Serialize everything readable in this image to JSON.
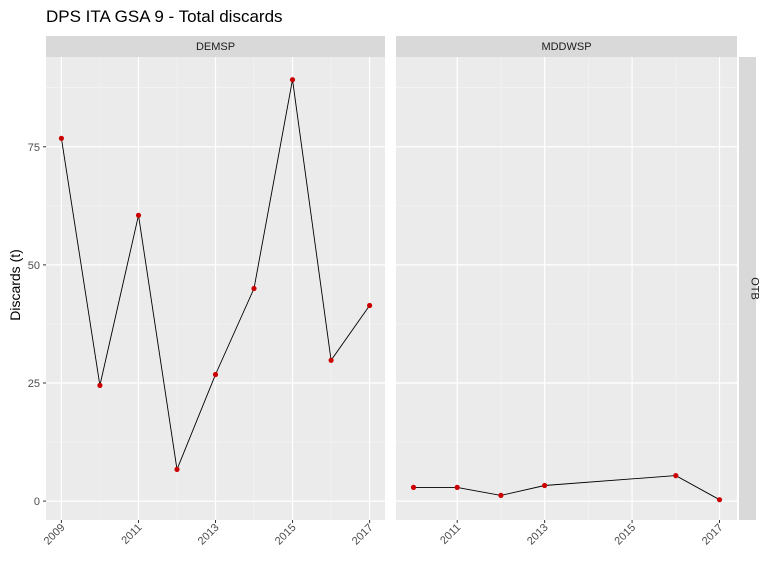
{
  "chart_data": {
    "type": "line",
    "title": "DPS ITA GSA 9 - Total discards",
    "xlabel": "",
    "ylabel": "Discards (t)",
    "row_strip": "OTB",
    "ylim": [
      -4,
      94
    ],
    "y_ticks": [
      0,
      25,
      50,
      75
    ],
    "grid": true,
    "colors": {
      "panel_bg": "#ebebeb",
      "grid_major": "#ffffff",
      "line": "#000000",
      "point": "#cc0000"
    },
    "facets": [
      {
        "name": "DEMSP",
        "xlim": [
          2008.6,
          2017.4
        ],
        "x_ticks": [
          2009,
          2011,
          2013,
          2015,
          2017
        ],
        "x": [
          2009,
          2010,
          2011,
          2012,
          2013,
          2014,
          2015,
          2016,
          2017
        ],
        "y": [
          76.8,
          24.5,
          60.5,
          6.7,
          26.8,
          45.0,
          89.2,
          29.8,
          41.4
        ]
      },
      {
        "name": "MDDWSP",
        "xlim": [
          2009.6,
          2017.4
        ],
        "x_ticks": [
          2011,
          2013,
          2015,
          2017
        ],
        "x": [
          2010,
          2011,
          2012,
          2013,
          2016,
          2017
        ],
        "y": [
          2.9,
          2.9,
          1.2,
          3.3,
          5.4,
          0.3
        ]
      }
    ]
  }
}
